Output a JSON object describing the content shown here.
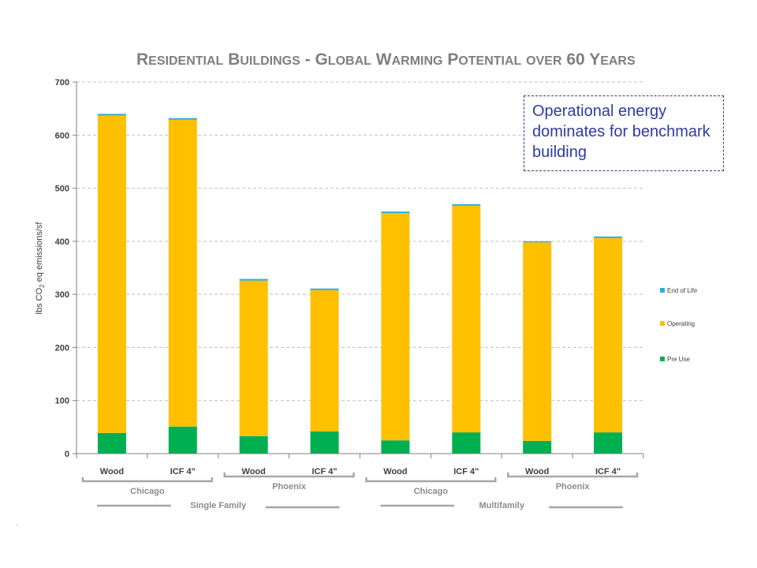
{
  "chart_data": {
    "type": "bar",
    "stacked": true,
    "title": "Residential Buildings - Global Warming Potential over 60 Years",
    "ylabel": "lbs CO2 eq emissions/sf",
    "ylabel_parts": [
      "lbs CO",
      "2",
      " eq emissions/sf"
    ],
    "ylim": [
      0,
      700
    ],
    "yticks": [
      "0",
      "100",
      "200",
      "300",
      "400",
      "500",
      "600",
      "700"
    ],
    "grid": true,
    "legend_position": "right",
    "categories": [
      "Wood",
      "ICF 4\"",
      "Wood",
      "ICF 4\"",
      "Wood",
      "ICF 4\"",
      "Wood",
      "ICF 4\""
    ],
    "series": [
      {
        "name": "Pre Use",
        "color": "#00b050",
        "values": [
          39,
          51,
          33,
          42,
          25,
          40,
          24,
          40
        ]
      },
      {
        "name": "Operating",
        "color": "#ffc000",
        "values": [
          598,
          578,
          293,
          266,
          428,
          427,
          374,
          366
        ]
      },
      {
        "name": "End of Life",
        "color": "#2bacd9",
        "values": [
          3,
          3,
          3,
          3,
          3,
          3,
          2,
          3
        ]
      }
    ],
    "city_groups": [
      {
        "label": "Chicago",
        "span": [
          0,
          1
        ]
      },
      {
        "label": "Phoenix",
        "span": [
          2,
          3
        ]
      },
      {
        "label": "Chicago",
        "span": [
          4,
          5
        ]
      },
      {
        "label": "Phoenix",
        "span": [
          6,
          7
        ]
      }
    ],
    "building_groups": [
      {
        "label": "Single Family",
        "span": [
          0,
          3
        ]
      },
      {
        "label": "Multifamily",
        "span": [
          4,
          7
        ]
      }
    ]
  },
  "annotation": "Operational energy dominates for benchmark building",
  "footnote": "-"
}
